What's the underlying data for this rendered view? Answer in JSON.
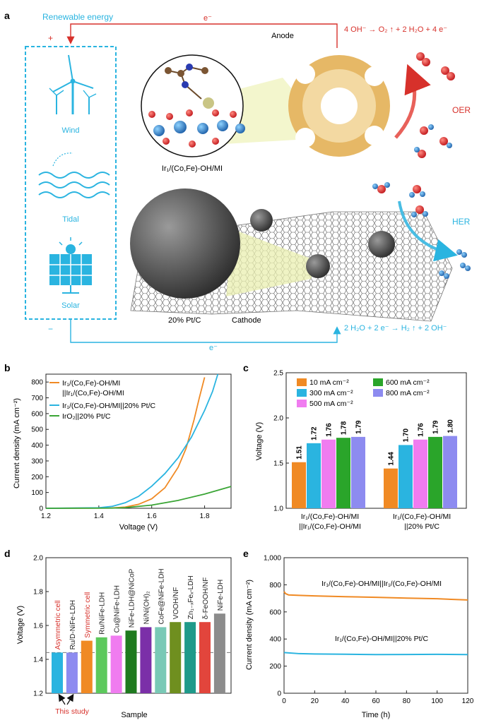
{
  "panel_labels": {
    "a": "a",
    "b": "b",
    "c": "c",
    "d": "d",
    "e": "e"
  },
  "panel_a": {
    "renewable_label": "Renewable energy",
    "electron_top": "e⁻",
    "electron_bottom": "e⁻",
    "plus": "+",
    "minus": "−",
    "sources": [
      "Wind",
      "Tidal",
      "Solar"
    ],
    "anode_label": "Anode",
    "anode_reaction": "4 OH⁻ → O₂ ↑ + 2 H₂O + 4 e⁻",
    "oer_label": "OER",
    "her_label": "HER",
    "catalyst_label": "Ir₁/(Co,Fe)-OH/MI",
    "ptc_label": "20% Pt/C",
    "cathode_label": "Cathode",
    "cathode_reaction": "2 H₂O + 2 e⁻ → H₂ ↑ + 2 OH⁻",
    "colors": {
      "red": "#d7312b",
      "blue": "#2ab4e0"
    }
  },
  "chart_data": [
    {
      "panel": "b",
      "type": "line",
      "xlabel": "Voltage (V)",
      "ylabel": "Current density (mA cm⁻²)",
      "xlim": [
        1.2,
        1.9
      ],
      "ylim": [
        0,
        850
      ],
      "xticks": [
        1.2,
        1.4,
        1.6,
        1.8
      ],
      "yticks": [
        0,
        100,
        200,
        300,
        400,
        500,
        600,
        700,
        800
      ],
      "legend": [
        "Ir₁/(Co,Fe)-OH/MI",
        "||Ir₁/(Co,Fe)-OH/MI",
        "Ir₁/(Co,Fe)-OH/MI||20% Pt/C",
        "IrO₂||20% Pt/C"
      ],
      "series": [
        {
          "name": "Ir₁/(Co,Fe)-OH/MI||Ir₁/(Co,Fe)-OH/MI",
          "color": "#f08a24",
          "x": [
            1.2,
            1.45,
            1.5,
            1.55,
            1.6,
            1.65,
            1.7,
            1.73,
            1.76,
            1.78,
            1.8
          ],
          "y": [
            0,
            2,
            8,
            25,
            60,
            130,
            260,
            380,
            560,
            700,
            830
          ]
        },
        {
          "name": "Ir₁/(Co,Fe)-OH/MI||20% Pt/C",
          "color": "#2ab4e0",
          "x": [
            1.2,
            1.4,
            1.45,
            1.5,
            1.55,
            1.6,
            1.65,
            1.7,
            1.75,
            1.8,
            1.83,
            1.85
          ],
          "y": [
            0,
            3,
            12,
            35,
            75,
            140,
            220,
            320,
            450,
            620,
            740,
            850
          ]
        },
        {
          "name": "IrO₂||20% Pt/C",
          "color": "#3aa535",
          "x": [
            1.2,
            1.45,
            1.5,
            1.6,
            1.7,
            1.8,
            1.9
          ],
          "y": [
            0,
            1,
            4,
            20,
            50,
            90,
            138
          ]
        }
      ]
    },
    {
      "panel": "c",
      "type": "bar",
      "ylabel": "Voltage (V)",
      "ylim": [
        1.0,
        2.5
      ],
      "yticks": [
        "1.0",
        "1.5",
        "2.0",
        "2.5"
      ],
      "categories": [
        [
          "Ir₁/(Co,Fe)-OH/MI",
          "||Ir₁/(Co,Fe)-OH/MI"
        ],
        [
          "Ir₁/(Co,Fe)-OH/MI",
          "||20% Pt/C"
        ]
      ],
      "series": [
        {
          "name": "10 mA cm⁻²",
          "color": "#f08a24",
          "values": [
            1.51,
            1.44
          ],
          "labels": [
            "1.51",
            "1.44"
          ]
        },
        {
          "name": "300 mA cm⁻²",
          "color": "#2ab4e0",
          "values": [
            1.72,
            1.7
          ],
          "labels": [
            "1.72",
            "1.70"
          ]
        },
        {
          "name": "500 mA cm⁻²",
          "color": "#f07cf0",
          "values": [
            1.76,
            1.76
          ],
          "labels": [
            "1.76",
            "1.76"
          ]
        },
        {
          "name": "600 mA cm⁻²",
          "color": "#2aa52a",
          "values": [
            1.78,
            1.79
          ],
          "labels": [
            "1.78",
            "1.79"
          ]
        },
        {
          "name": "800 mA cm⁻²",
          "color": "#8d8bf0",
          "values": [
            1.79,
            1.8
          ],
          "labels": [
            "1.79",
            "1.80"
          ]
        }
      ]
    },
    {
      "panel": "d",
      "type": "bar",
      "xlabel": "Sample",
      "ylabel": "Voltage (V)",
      "ylim": [
        1.2,
        2.0
      ],
      "yticks": [
        "1.2",
        "1.4",
        "1.6",
        "1.8",
        "2.0"
      ],
      "reference_line": 1.44,
      "annotation": "This study",
      "bars": [
        {
          "label": "Asymmetric cell",
          "value": 1.44,
          "color": "#2ab4e0",
          "label_color": "#d7312b"
        },
        {
          "label": "Ru/D-NiFe-LDH",
          "value": 1.44,
          "color": "#8d8bf0",
          "label_color": "#222222"
        },
        {
          "label": "Symmetric cell",
          "value": 1.51,
          "color": "#f08a24",
          "label_color": "#d7312b"
        },
        {
          "label": "Ru/NiFe-LDH",
          "value": 1.53,
          "color": "#5cc95c",
          "label_color": "#222222"
        },
        {
          "label": "Cu@NiFe-LDH",
          "value": 1.54,
          "color": "#f07cf0",
          "label_color": "#222222"
        },
        {
          "label": "NiFe-LDH@NiCoP",
          "value": 1.57,
          "color": "#1f7a1f",
          "label_color": "#222222"
        },
        {
          "label": "Ni/Ni(OH)₂",
          "value": 1.59,
          "color": "#7b2fa8",
          "label_color": "#222222"
        },
        {
          "label": "CoFe@NiFe-LDH",
          "value": 1.59,
          "color": "#79c9b6",
          "label_color": "#222222"
        },
        {
          "label": "VOOH/NF",
          "value": 1.62,
          "color": "#6f8f1f",
          "label_color": "#222222"
        },
        {
          "label": "Zn₁₋ₓFeₓ-LDH",
          "value": 1.62,
          "color": "#1f9a8a",
          "label_color": "#222222"
        },
        {
          "label": "δ-FeOOH/NF",
          "value": 1.62,
          "color": "#e2453c",
          "label_color": "#222222"
        },
        {
          "label": "NiFe-LDH",
          "value": 1.67,
          "color": "#8c8c8c",
          "label_color": "#222222"
        }
      ]
    },
    {
      "panel": "e",
      "type": "line",
      "xlabel": "Time (h)",
      "ylabel": "Current density (mA cm⁻²)",
      "xlim": [
        0,
        120
      ],
      "ylim": [
        0,
        1000
      ],
      "xticks": [
        0,
        20,
        40,
        60,
        80,
        100,
        120
      ],
      "yticks": [
        "0",
        "200",
        "400",
        "600",
        "800",
        "1,000"
      ],
      "series": [
        {
          "name": "Ir₁/(Co,Fe)-OH/MI||Ir₁/(Co,Fe)-OH/MI",
          "color": "#f08a24",
          "x": [
            0,
            1,
            3,
            10,
            20,
            40,
            60,
            80,
            100,
            120
          ],
          "y": [
            750,
            735,
            725,
            722,
            718,
            712,
            708,
            702,
            697,
            688
          ]
        },
        {
          "name": "Ir₁/(Co,Fe)-OH/MI||20% Pt/C",
          "color": "#2ab4e0",
          "x": [
            0,
            10,
            20,
            40,
            60,
            80,
            100,
            120
          ],
          "y": [
            300,
            292,
            290,
            288,
            285,
            286,
            287,
            285
          ]
        }
      ]
    }
  ]
}
